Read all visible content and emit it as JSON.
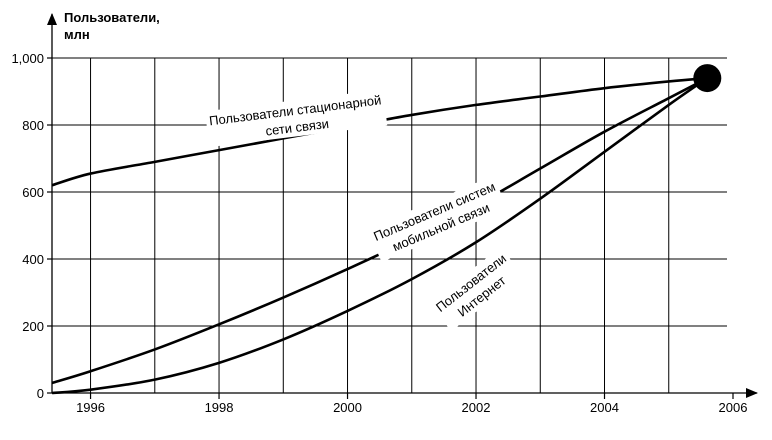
{
  "chart_data": {
    "type": "line",
    "title": "",
    "ylabel_lines": [
      "Пользователи,",
      "млн"
    ],
    "xlabel": "",
    "xlim": [
      1995.4,
      2006
    ],
    "ylim": [
      0,
      1000
    ],
    "x_ticks": [
      1996,
      1998,
      2000,
      2002,
      2004,
      2006
    ],
    "x_tick_labels": [
      "1996",
      "1998",
      "2000",
      "2002",
      "2004",
      "2006"
    ],
    "y_ticks": [
      0,
      200,
      400,
      600,
      800,
      1000
    ],
    "y_tick_labels": [
      "0",
      "200",
      "400",
      "600",
      "800",
      "1,000"
    ],
    "x_grid": [
      1995.4,
      1996,
      1997,
      1998,
      1999,
      2000,
      2001,
      2002,
      2003,
      2004,
      2005
    ],
    "y_grid": [
      0,
      200,
      400,
      600,
      800,
      1000
    ],
    "grid": true,
    "series": [
      {
        "name": "Пользователи стационарной сети связи",
        "label_lines": [
          "Пользователи стационарной",
          "сети связи"
        ],
        "x": [
          1995.4,
          1996,
          1997,
          1998,
          1999,
          2000,
          2001,
          2002,
          2003,
          2004,
          2005,
          2005.6
        ],
        "y": [
          620,
          655,
          690,
          725,
          760,
          795,
          830,
          860,
          885,
          910,
          930,
          940
        ]
      },
      {
        "name": "Пользователи систем мобильной связи",
        "label_lines": [
          "Пользователи систем",
          "мобильной связи"
        ],
        "x": [
          1995.4,
          1996,
          1997,
          1998,
          1999,
          2000,
          2001,
          2002,
          2003,
          2004,
          2005,
          2005.6
        ],
        "y": [
          30,
          65,
          130,
          205,
          285,
          370,
          460,
          560,
          670,
          780,
          880,
          940
        ]
      },
      {
        "name": "Пользователи Интернет",
        "label_lines": [
          "Пользователи",
          "Интернет"
        ],
        "x": [
          1995.4,
          1996,
          1997,
          1998,
          1999,
          2000,
          2001,
          2002,
          2003,
          2004,
          2005,
          2005.6
        ],
        "y": [
          0,
          10,
          40,
          90,
          160,
          245,
          340,
          450,
          580,
          720,
          860,
          940
        ]
      }
    ],
    "convergence_point": {
      "x": 2005.6,
      "y": 940
    }
  }
}
